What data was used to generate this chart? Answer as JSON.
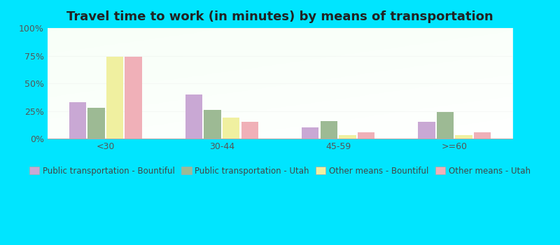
{
  "title": "Travel time to work (in minutes) by means of transportation",
  "categories": [
    "<30",
    "30-44",
    "45-59",
    ">=60"
  ],
  "series": {
    "Public transportation - Bountiful": [
      33,
      40,
      10,
      15
    ],
    "Public transportation - Utah": [
      28,
      26,
      16,
      24
    ],
    "Other means - Bountiful": [
      74,
      19,
      3,
      3
    ],
    "Other means - Utah": [
      74,
      15,
      6,
      6
    ]
  },
  "colors": {
    "Public transportation - Bountiful": "#c9a8d4",
    "Public transportation - Utah": "#9dba94",
    "Other means - Bountiful": "#f0f0a0",
    "Other means - Utah": "#f0b0b8"
  },
  "ylim": [
    0,
    100
  ],
  "yticks": [
    0,
    25,
    50,
    75,
    100
  ],
  "ytick_labels": [
    "0%",
    "25%",
    "50%",
    "75%",
    "100%"
  ],
  "title_fontsize": 13,
  "tick_fontsize": 9,
  "legend_fontsize": 8.5,
  "outer_bg": "#00e5ff",
  "plot_bg_color": "#dff0df"
}
